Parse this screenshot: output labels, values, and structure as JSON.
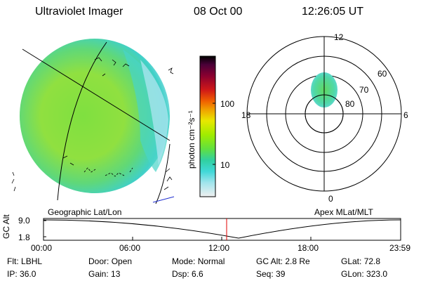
{
  "header": {
    "title": "Ultraviolet Imager",
    "date": "08 Oct 00",
    "time": "12:26:05 UT"
  },
  "colorbar": {
    "label": "photon cm⁻²s⁻¹",
    "tick_100": "100",
    "tick_10": "10",
    "colors_top_to_bottom": [
      "#000000",
      "#3a0030",
      "#6a0040",
      "#a00020",
      "#d01010",
      "#f04000",
      "#f08000",
      "#f0c000",
      "#e0f000",
      "#a0f000",
      "#50e040",
      "#30d0a0",
      "#40d8d8",
      "#90e0e8",
      "#d0e8f0",
      "#f0f0f0"
    ]
  },
  "left_map": {
    "label": "Geographic Lat/Lon"
  },
  "polar": {
    "label": "Apex MLat/MLT",
    "mlt_labels": {
      "top": "12",
      "left": "18",
      "right": "6",
      "bottom": "0"
    },
    "lat_labels": [
      "60",
      "70",
      "80"
    ]
  },
  "timeline": {
    "ylabel": "GC Alt",
    "y_ticks": [
      "9.0",
      "1.8"
    ],
    "x_ticks": [
      "00:00",
      "06:00",
      "12:00",
      "18:00",
      "23:59"
    ],
    "marker_color": "#e00000"
  },
  "status": {
    "row1": [
      {
        "key": "Flt:",
        "value": "LBHL"
      },
      {
        "key": "Door:",
        "value": "Open"
      },
      {
        "key": "Mode:",
        "value": "Normal"
      },
      {
        "key": "GC Alt:",
        "value": "2.8 Re"
      },
      {
        "key": "GLat:",
        "value": "72.8"
      }
    ],
    "row2": [
      {
        "key": "IP:",
        "value": "36.0"
      },
      {
        "key": "Gain:",
        "value": "13"
      },
      {
        "key": "Dsp:",
        "value": "6.6"
      },
      {
        "key": "Seq:",
        "value": "39"
      },
      {
        "key": "GLon:",
        "value": "323.0"
      }
    ]
  }
}
